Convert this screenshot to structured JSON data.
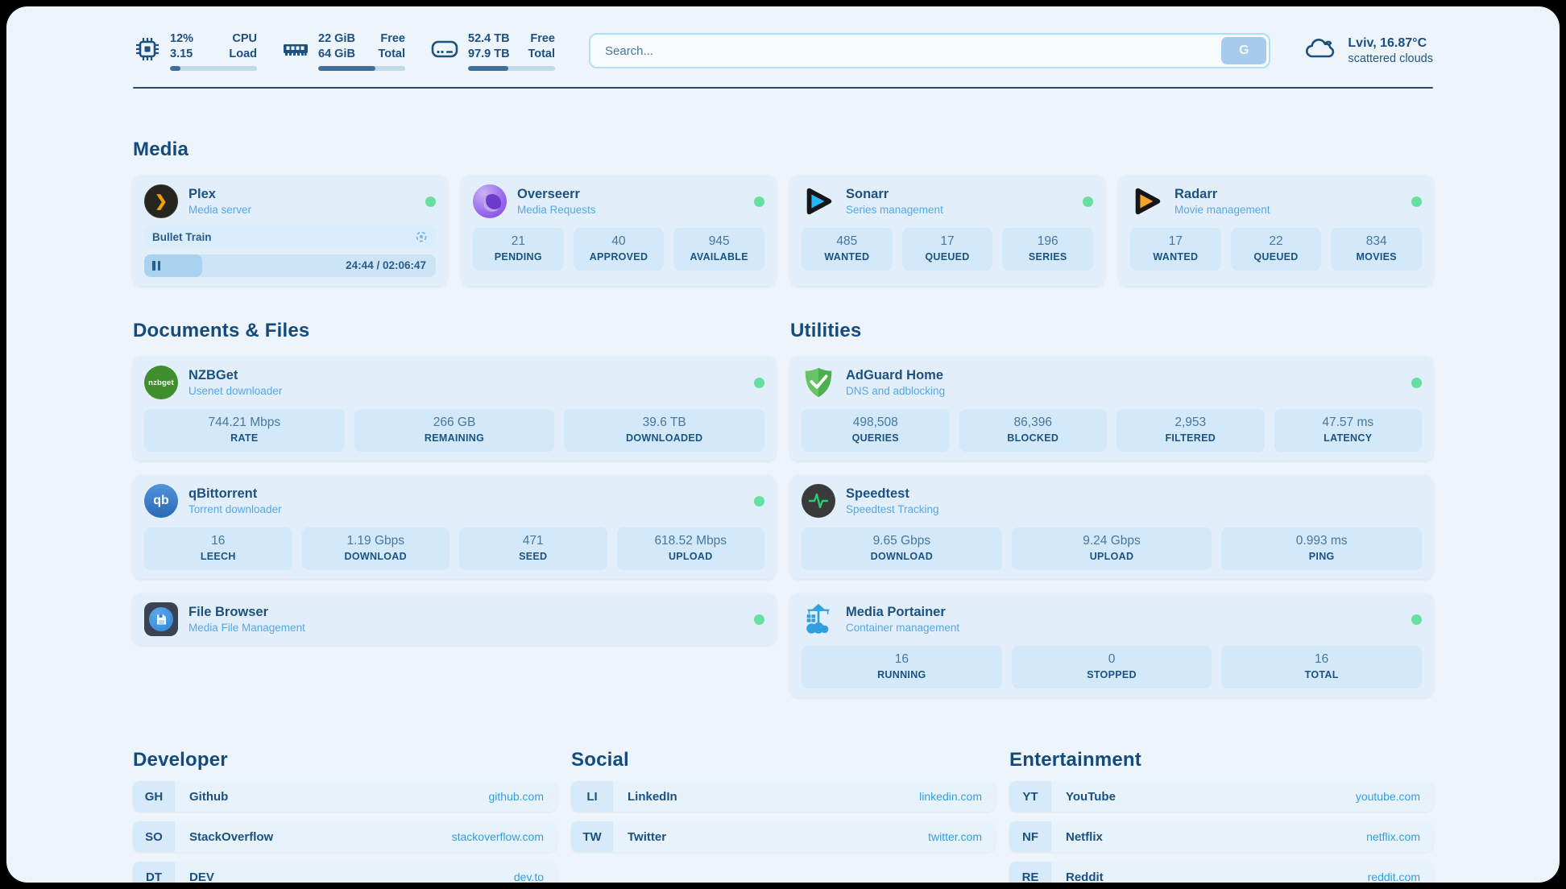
{
  "colors": {
    "page_background": "#edf4fb",
    "card_background": "#e2effa",
    "stat_box_background": "#d3e8f8",
    "heading_text": "#134b7e",
    "subtitle_text": "#54a7e6",
    "link_text": "#2e9fe3",
    "status_online": "#66e0a2",
    "progress_fill": "#3f6f99"
  },
  "header": {
    "stats": [
      {
        "icon": "cpu-icon",
        "rows": [
          {
            "value": "12%",
            "label": "CPU"
          },
          {
            "value": "3.15",
            "label": "Load"
          }
        ],
        "progress_percent": 12
      },
      {
        "icon": "memory-icon",
        "rows": [
          {
            "value": "22 GiB",
            "label": "Free"
          },
          {
            "value": "64 GiB",
            "label": "Total"
          }
        ],
        "progress_percent": 66
      },
      {
        "icon": "disk-icon",
        "rows": [
          {
            "value": "52.4 TB",
            "label": "Free"
          },
          {
            "value": "97.9 TB",
            "label": "Total"
          }
        ],
        "progress_percent": 46
      }
    ],
    "search": {
      "placeholder": "Search...",
      "button_label": "G"
    },
    "weather": {
      "icon": "cloud-icon",
      "location_temp": "Lviv, 16.87°C",
      "condition": "scattered clouds"
    }
  },
  "sections": {
    "media": {
      "title": "Media",
      "cards": {
        "plex": {
          "title": "Plex",
          "subtitle": "Media server",
          "icon": "plex-icon",
          "status": "online",
          "player": {
            "track": "Bullet Train",
            "progress_percent": 20,
            "time": "24:44 / 02:06:47"
          }
        },
        "overseerr": {
          "title": "Overseerr",
          "subtitle": "Media Requests",
          "icon": "overseerr-icon",
          "status": "online",
          "stats": [
            {
              "value": "21",
              "label": "PENDING"
            },
            {
              "value": "40",
              "label": "APPROVED"
            },
            {
              "value": "945",
              "label": "AVAILABLE"
            }
          ]
        },
        "sonarr": {
          "title": "Sonarr",
          "subtitle": "Series management",
          "icon": "sonarr-icon",
          "status": "online",
          "stats": [
            {
              "value": "485",
              "label": "WANTED"
            },
            {
              "value": "17",
              "label": "QUEUED"
            },
            {
              "value": "196",
              "label": "SERIES"
            }
          ]
        },
        "radarr": {
          "title": "Radarr",
          "subtitle": "Movie management",
          "icon": "radarr-icon",
          "status": "online",
          "stats": [
            {
              "value": "17",
              "label": "WANTED"
            },
            {
              "value": "22",
              "label": "QUEUED"
            },
            {
              "value": "834",
              "label": "MOVIES"
            }
          ]
        }
      }
    },
    "documents": {
      "title": "Documents & Files",
      "cards": {
        "nzbget": {
          "title": "NZBGet",
          "subtitle": "Usenet downloader",
          "icon": "nzbget-icon",
          "icon_text": "nzbget",
          "status": "online",
          "stats": [
            {
              "value": "744.21 Mbps",
              "label": "RATE"
            },
            {
              "value": "266 GB",
              "label": "REMAINING"
            },
            {
              "value": "39.6 TB",
              "label": "DOWNLOADED"
            }
          ]
        },
        "qbittorrent": {
          "title": "qBittorrent",
          "subtitle": "Torrent downloader",
          "icon": "qbittorrent-icon",
          "icon_text": "qb",
          "status": "online",
          "stats": [
            {
              "value": "16",
              "label": "LEECH"
            },
            {
              "value": "1.19 Gbps",
              "label": "DOWNLOAD"
            },
            {
              "value": "471",
              "label": "SEED"
            },
            {
              "value": "618.52 Mbps",
              "label": "UPLOAD"
            }
          ]
        },
        "filebrowser": {
          "title": "File Browser",
          "subtitle": "Media File Management",
          "icon": "filebrowser-icon",
          "status": "online"
        }
      }
    },
    "utilities": {
      "title": "Utilities",
      "cards": {
        "adguard": {
          "title": "AdGuard Home",
          "subtitle": "DNS and adblocking",
          "icon": "adguard-icon",
          "status": "online",
          "stats": [
            {
              "value": "498,508",
              "label": "QUERIES"
            },
            {
              "value": "86,396",
              "label": "BLOCKED"
            },
            {
              "value": "2,953",
              "label": "FILTERED"
            },
            {
              "value": "47.57 ms",
              "label": "LATENCY"
            }
          ]
        },
        "speedtest": {
          "title": "Speedtest",
          "subtitle": "Speedtest Tracking",
          "icon": "speedtest-icon",
          "stats": [
            {
              "value": "9.65 Gbps",
              "label": "DOWNLOAD"
            },
            {
              "value": "9.24 Gbps",
              "label": "UPLOAD"
            },
            {
              "value": "0.993 ms",
              "label": "PING"
            }
          ]
        },
        "portainer": {
          "title": "Media Portainer",
          "subtitle": "Container management",
          "icon": "portainer-icon",
          "status": "online",
          "stats": [
            {
              "value": "16",
              "label": "RUNNING"
            },
            {
              "value": "0",
              "label": "STOPPED"
            },
            {
              "value": "16",
              "label": "TOTAL"
            }
          ]
        }
      }
    }
  },
  "bookmarks": {
    "developer": {
      "title": "Developer",
      "links": [
        {
          "abbr": "GH",
          "name": "Github",
          "url": "github.com"
        },
        {
          "abbr": "SO",
          "name": "StackOverflow",
          "url": "stackoverflow.com"
        },
        {
          "abbr": "DT",
          "name": "DEV",
          "url": "dev.to"
        }
      ]
    },
    "social": {
      "title": "Social",
      "links": [
        {
          "abbr": "LI",
          "name": "LinkedIn",
          "url": "linkedin.com"
        },
        {
          "abbr": "TW",
          "name": "Twitter",
          "url": "twitter.com"
        }
      ]
    },
    "entertainment": {
      "title": "Entertainment",
      "links": [
        {
          "abbr": "YT",
          "name": "YouTube",
          "url": "youtube.com"
        },
        {
          "abbr": "NF",
          "name": "Netflix",
          "url": "netflix.com"
        },
        {
          "abbr": "RE",
          "name": "Reddit",
          "url": "reddit.com"
        }
      ]
    }
  }
}
